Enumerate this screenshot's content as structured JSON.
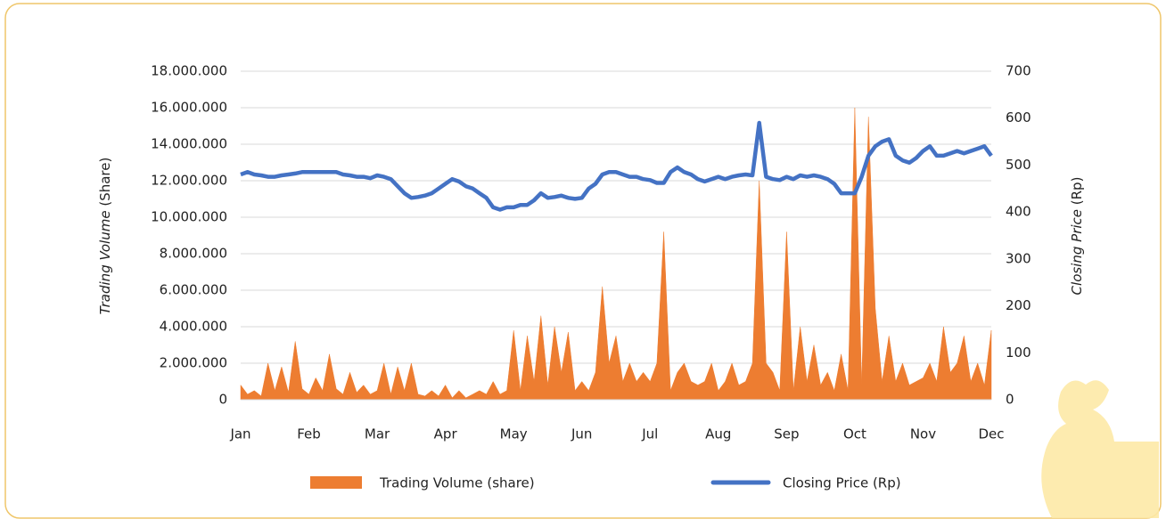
{
  "chart_data": {
    "type": "area-line",
    "ylabel": [
      "Trading Volume",
      "(Share)"
    ],
    "y2label": [
      "Closing Price",
      "(Rp)"
    ],
    "categories": [
      "Jan",
      null,
      null,
      null,
      null,
      null,
      null,
      null,
      null,
      null,
      "Feb",
      null,
      null,
      null,
      null,
      null,
      null,
      null,
      null,
      null,
      "Mar",
      null,
      null,
      null,
      null,
      null,
      null,
      null,
      null,
      null,
      "Apr",
      null,
      null,
      null,
      null,
      null,
      null,
      null,
      null,
      null,
      "May",
      null,
      null,
      null,
      null,
      null,
      null,
      null,
      null,
      null,
      "Jun",
      null,
      null,
      null,
      null,
      null,
      null,
      null,
      null,
      null,
      "Jul",
      null,
      null,
      null,
      null,
      null,
      null,
      null,
      null,
      null,
      "Aug",
      null,
      null,
      null,
      null,
      null,
      null,
      null,
      null,
      null,
      "Sep",
      null,
      null,
      null,
      null,
      null,
      null,
      null,
      null,
      null,
      "Oct",
      null,
      null,
      null,
      null,
      null,
      null,
      null,
      null,
      null,
      "Nov",
      null,
      null,
      null,
      null,
      null,
      null,
      null,
      null,
      null,
      "Dec"
    ],
    "series": [
      {
        "name": "Trading Volume (share)",
        "color": "#ed7d31",
        "kind": "area",
        "axis": "y",
        "values": [
          800000,
          300000,
          500000,
          200000,
          2000000,
          500000,
          1800000,
          400000,
          3200000,
          600000,
          300000,
          1200000,
          500000,
          2500000,
          600000,
          300000,
          1500000,
          400000,
          800000,
          300000,
          500000,
          2000000,
          300000,
          1800000,
          500000,
          2000000,
          300000,
          200000,
          500000,
          200000,
          800000,
          100000,
          500000,
          100000,
          300000,
          500000,
          300000,
          1000000,
          300000,
          500000,
          3800000,
          500000,
          3500000,
          1000000,
          4600000,
          800000,
          4000000,
          1500000,
          3700000,
          500000,
          1000000,
          500000,
          1500000,
          6200000,
          2000000,
          3500000,
          1000000,
          2000000,
          1000000,
          1500000,
          1000000,
          2000000,
          9200000,
          500000,
          1500000,
          2000000,
          1000000,
          800000,
          1000000,
          2000000,
          500000,
          1000000,
          2000000,
          800000,
          1000000,
          2000000,
          12000000,
          2000000,
          1500000,
          500000,
          9200000,
          500000,
          4000000,
          1000000,
          3000000,
          800000,
          1500000,
          500000,
          2500000,
          500000,
          16000000,
          800000,
          15500000,
          5000000,
          1000000,
          3500000,
          1000000,
          2000000,
          800000,
          1000000,
          1200000,
          2000000,
          1000000,
          4000000,
          1500000,
          2000000,
          3500000,
          1000000,
          2000000,
          800000,
          3800000
        ]
      },
      {
        "name": "Closing Price (Rp)",
        "color": "#4472c4",
        "kind": "line",
        "axis": "y2",
        "values": [
          480,
          485,
          480,
          478,
          475,
          475,
          478,
          480,
          482,
          485,
          485,
          485,
          485,
          485,
          485,
          480,
          478,
          475,
          475,
          472,
          478,
          475,
          470,
          455,
          440,
          430,
          432,
          435,
          440,
          450,
          460,
          470,
          465,
          455,
          450,
          440,
          430,
          410,
          405,
          410,
          410,
          415,
          415,
          425,
          440,
          430,
          432,
          435,
          430,
          428,
          430,
          450,
          460,
          480,
          485,
          485,
          480,
          475,
          475,
          470,
          468,
          462,
          462,
          485,
          495,
          485,
          480,
          470,
          465,
          470,
          475,
          470,
          475,
          478,
          480,
          478,
          590,
          475,
          470,
          468,
          475,
          470,
          478,
          475,
          478,
          475,
          470,
          460,
          440,
          440,
          440,
          475,
          520,
          540,
          550,
          555,
          520,
          510,
          505,
          515,
          530,
          540,
          520,
          520,
          525,
          530,
          525,
          530,
          535,
          540,
          520
        ]
      }
    ],
    "ylim": [
      0,
      18000000
    ],
    "yticks": [
      0,
      {
        "value": 2000000,
        "label": "2.000.000"
      },
      {
        "value": 4000000,
        "label": "4.000.000"
      },
      {
        "value": 6000000,
        "label": "6.000.000"
      },
      {
        "value": 8000000,
        "label": "8.000.000"
      },
      {
        "value": 10000000,
        "label": "10.000.000"
      },
      {
        "value": 12000000,
        "label": "12.000.000"
      },
      {
        "value": 14000000,
        "label": "14.000.000"
      },
      {
        "value": 16000000,
        "label": "16.000.000"
      },
      {
        "value": 18000000,
        "label": "18.000.000"
      }
    ],
    "y2lim": [
      0,
      700
    ],
    "y2ticks": [
      0,
      100,
      200,
      300,
      400,
      500,
      600,
      700
    ],
    "grid": true,
    "legend": "bottom"
  }
}
